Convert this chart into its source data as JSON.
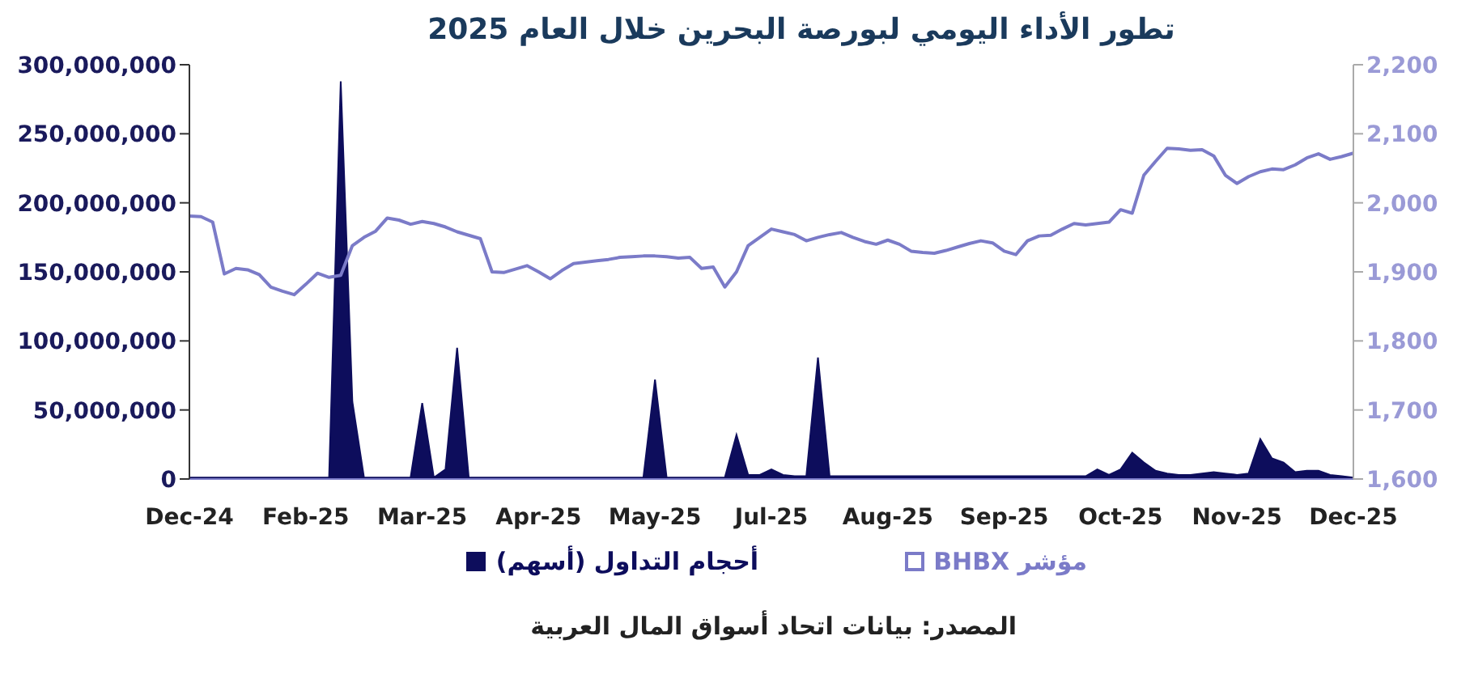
{
  "chart_data": {
    "type": "line",
    "title": "تطور الأداء اليومي لبورصة البحرين خلال العام 2025",
    "annotations": [
      "المصدر: بيانات اتحاد أسواق المال العربية"
    ],
    "legend": "bottom",
    "grid": false,
    "categories": [
      "Dec-24",
      null,
      null,
      null,
      null,
      null,
      null,
      null,
      null,
      null,
      "Feb-25",
      null,
      null,
      null,
      null,
      null,
      null,
      null,
      null,
      null,
      "Mar-25",
      null,
      null,
      null,
      null,
      null,
      null,
      null,
      null,
      null,
      "Apr-25",
      null,
      null,
      null,
      null,
      null,
      null,
      null,
      null,
      null,
      "May-25",
      null,
      null,
      null,
      null,
      null,
      null,
      null,
      null,
      null,
      "Jul-25",
      null,
      null,
      null,
      null,
      null,
      null,
      null,
      null,
      null,
      "Aug-25",
      null,
      null,
      null,
      null,
      null,
      null,
      null,
      null,
      null,
      "Sep-25",
      null,
      null,
      null,
      null,
      null,
      null,
      null,
      null,
      null,
      "Oct-25",
      null,
      null,
      null,
      null,
      null,
      null,
      null,
      null,
      null,
      "Nov-25",
      null,
      null,
      null,
      null,
      null,
      null,
      null,
      null,
      null,
      "Dec-25"
    ],
    "ylim": [
      0,
      300000000
    ],
    "yticks": [
      {
        "value": 0,
        "label": "0"
      },
      {
        "value": 50000000,
        "label": "50,000,000"
      },
      {
        "value": 100000000,
        "label": "100,000,000"
      },
      {
        "value": 150000000,
        "label": "150,000,000"
      },
      {
        "value": 200000000,
        "label": "200,000,000"
      },
      {
        "value": 250000000,
        "label": "250,000,000"
      },
      {
        "value": 300000000,
        "label": "300,000,000"
      }
    ],
    "y2lim": [
      1600,
      2200
    ],
    "y2ticks": [
      {
        "value": 1600,
        "label": "1,600"
      },
      {
        "value": 1700,
        "label": "1,700"
      },
      {
        "value": 1800,
        "label": "1,800"
      },
      {
        "value": 1900,
        "label": "1,900"
      },
      {
        "value": 2000,
        "label": "2,000"
      },
      {
        "value": 2100,
        "label": "2,100"
      },
      {
        "value": 2200,
        "label": "2,200"
      }
    ],
    "series": [
      {
        "name": "مؤشر BHBX",
        "axis": "y2",
        "color": "#7b7bc8",
        "values": [
          1981,
          1980,
          1972,
          1897,
          1905,
          1903,
          1896,
          1878,
          1872,
          1867,
          1882,
          1898,
          1892,
          1895,
          1938,
          1950,
          1959,
          1978,
          1975,
          1969,
          1973,
          1970,
          1965,
          1958,
          1953,
          1948,
          1900,
          1899,
          1904,
          1909,
          1900,
          1890,
          1902,
          1912,
          1914,
          1916,
          1918,
          1921,
          1922,
          1923,
          1923,
          1922,
          1920,
          1921,
          1905,
          1907,
          1878,
          1900,
          1938,
          1950,
          1962,
          1958,
          1954,
          1945,
          1950,
          1954,
          1957,
          1950,
          1944,
          1940,
          1946,
          1940,
          1930,
          1928,
          1927,
          1931,
          1936,
          1941,
          1945,
          1942,
          1930,
          1925,
          1945,
          1952,
          1953,
          1962,
          1970,
          1968,
          1970,
          1972,
          1990,
          1985,
          2040,
          2060,
          2079,
          2078,
          2076,
          2077,
          2068,
          2040,
          2028,
          2038,
          2045,
          2049,
          2048,
          2055,
          2065,
          2071,
          2063,
          2067,
          2072
        ]
      },
      {
        "name": "أحجام التداول (أسهم)",
        "type": "area",
        "axis": "y",
        "color": "#0d0d5c",
        "values": [
          1000000,
          1000000,
          1000000,
          1000000,
          1000000,
          1000000,
          1000000,
          1000000,
          1000000,
          1000000,
          1000000,
          1000000,
          1000000,
          288000000,
          56000000,
          1000000,
          1000000,
          1000000,
          1000000,
          1000000,
          55000000,
          1000000,
          7000000,
          95000000,
          1000000,
          1000000,
          1000000,
          1000000,
          1000000,
          1000000,
          1000000,
          1000000,
          1000000,
          1000000,
          1000000,
          1000000,
          1000000,
          1000000,
          1000000,
          1000000,
          72000000,
          1000000,
          1000000,
          1000000,
          1000000,
          1000000,
          1000000,
          32000000,
          3000000,
          3000000,
          7000000,
          3000000,
          2000000,
          2000000,
          88000000,
          2000000,
          2000000,
          2000000,
          2000000,
          2000000,
          2000000,
          2000000,
          2000000,
          2000000,
          2000000,
          2000000,
          2000000,
          2000000,
          2000000,
          2000000,
          2000000,
          2000000,
          2000000,
          2000000,
          2000000,
          2000000,
          2000000,
          2000000,
          7000000,
          3000000,
          7000000,
          19000000,
          12000000,
          6000000,
          4000000,
          3000000,
          3000000,
          4000000,
          5000000,
          4000000,
          3000000,
          4000000,
          29000000,
          15000000,
          12000000,
          5000000,
          6000000,
          6000000,
          3000000,
          2000000,
          1000000
        ]
      }
    ]
  }
}
